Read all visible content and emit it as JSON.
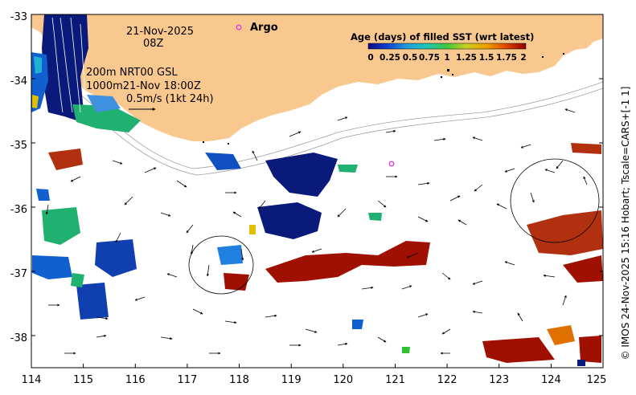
{
  "map": {
    "x_ticks": [
      "114",
      "115",
      "116",
      "117",
      "118",
      "119",
      "120",
      "121",
      "122",
      "123",
      "124",
      "125"
    ],
    "y_ticks": [
      "-33",
      "-34",
      "-35",
      "-36",
      "-37",
      "-38"
    ],
    "date_line1": "21-Nov-2025",
    "date_line2": "08Z",
    "argo_label": "Argo",
    "depth_line1": "200m  NRT00 GSL",
    "depth_line2": "1000m21-Nov 18:00Z",
    "vector_scale": "0.5m/s (1kt 24h)",
    "side_caption": "© IMOS 24-Nov-2025 15:16 Hobart; Tscale=CARS+[-1 1]"
  },
  "colorbar": {
    "title": "Age (days) of filled SST (wrt latest)",
    "tick_labels": [
      "0",
      "0.25",
      "0.5",
      "0.75",
      "1",
      "1.25",
      "1.5",
      "1.75",
      "2"
    ]
  },
  "colors": {
    "land": "#f9c88f",
    "argo_marker": "#e040e0",
    "age_0": "#0a1a7a",
    "age_1": "#00c060",
    "age_2": "#a01000"
  }
}
